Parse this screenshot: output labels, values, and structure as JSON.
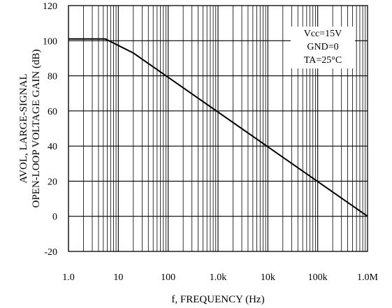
{
  "chart_data": {
    "type": "line",
    "title": "",
    "xlabel": "f, FREQUENCY (Hz)",
    "ylabel_line1": "AVOL, LARGE-SIGNAL",
    "ylabel_line2": "OPEN-LOOP VOLTAGE GAIN (dB)",
    "x_scale": "log",
    "xlim": [
      1,
      1000000
    ],
    "ylim": [
      -20,
      120
    ],
    "x_ticks": [
      1,
      10,
      100,
      1000,
      10000,
      100000,
      1000000
    ],
    "x_tick_labels": [
      "1.0",
      "10",
      "100",
      "1.0k",
      "10k",
      "100k",
      "1.0M"
    ],
    "y_ticks": [
      -20,
      0,
      20,
      40,
      60,
      80,
      100,
      120
    ],
    "y_tick_labels": [
      "-20",
      "0",
      "20",
      "40",
      "60",
      "80",
      "100",
      "120"
    ],
    "grid": true,
    "series": [
      {
        "x": [
          1,
          5.5,
          20,
          1000000
        ],
        "y": [
          101,
          101,
          93,
          0
        ]
      }
    ],
    "annotations": [
      "Vcc=15V",
      "GND=0",
      "TA=25°C"
    ],
    "annotation_placement": "top-right"
  }
}
